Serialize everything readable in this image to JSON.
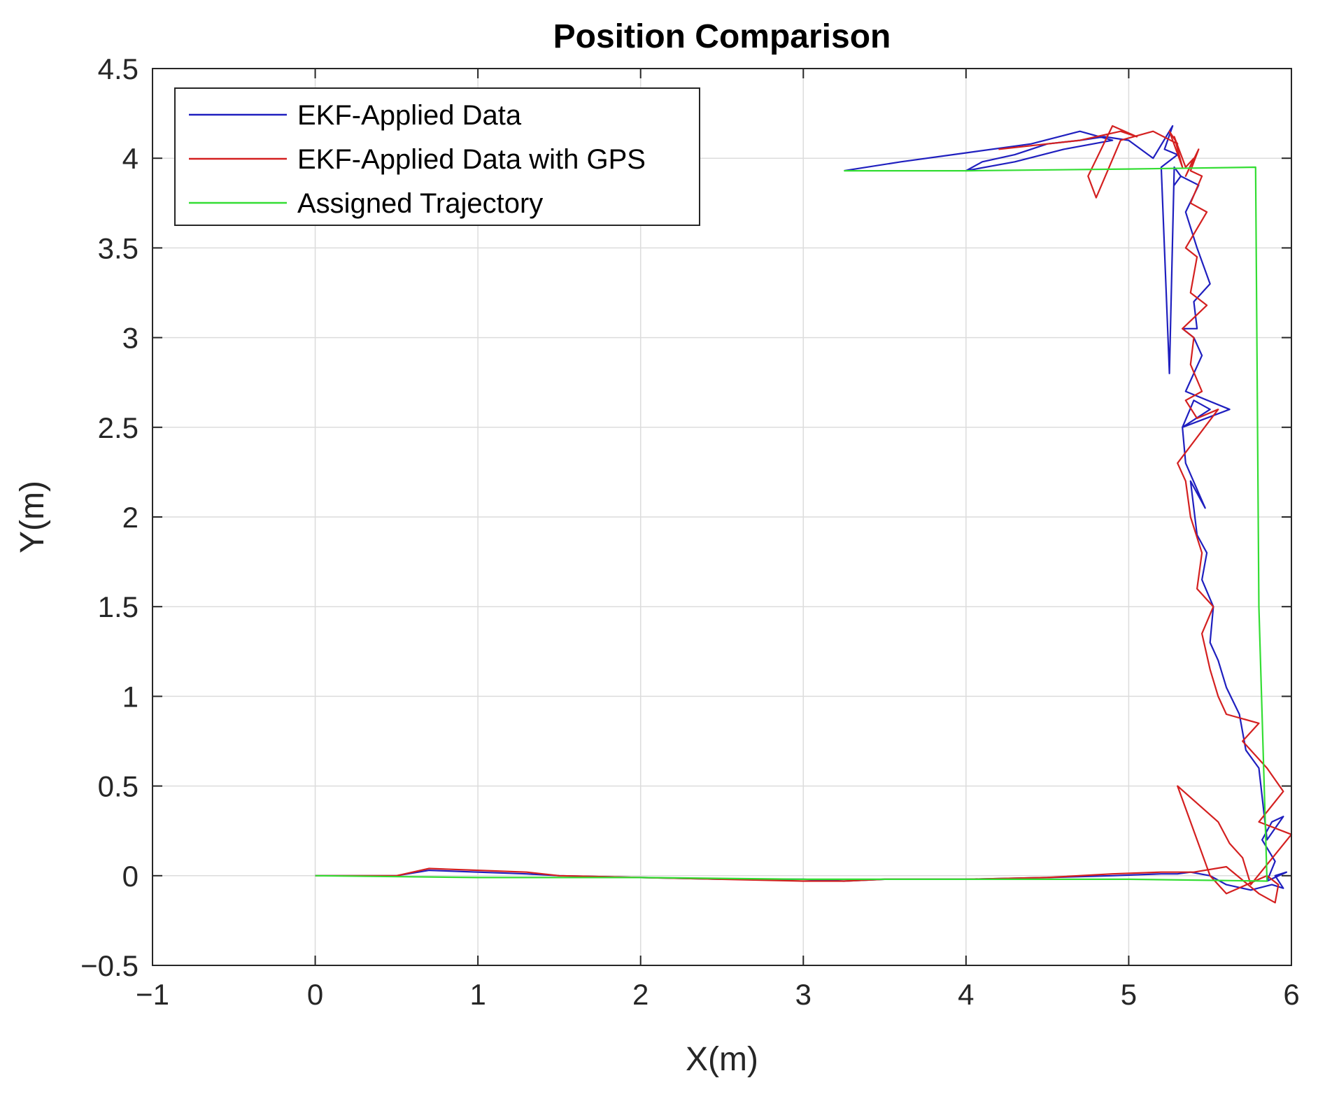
{
  "chart_data": {
    "type": "line",
    "title": "Position Comparison",
    "xlabel": "X(m)",
    "ylabel": "Y(m)",
    "xlim": [
      -1,
      6
    ],
    "ylim": [
      -0.5,
      4.5
    ],
    "xticks": [
      -1,
      0,
      1,
      2,
      3,
      4,
      5,
      6
    ],
    "xtick_labels": [
      "−1",
      "0",
      "1",
      "2",
      "3",
      "4",
      "5",
      "6"
    ],
    "yticks": [
      -0.5,
      0,
      0.5,
      1,
      1.5,
      2,
      2.5,
      3,
      3.5,
      4,
      4.5
    ],
    "ytick_labels": [
      "−0.5",
      "0",
      "0.5",
      "1",
      "1.5",
      "2",
      "2.5",
      "3",
      "3.5",
      "4",
      "4.5"
    ],
    "grid": true,
    "legend_position": "top-left",
    "series": [
      {
        "name": "EKF-Applied Data",
        "color": "#1f1fbf",
        "x": [
          0,
          0.5,
          0.7,
          1.0,
          1.3,
          1.5,
          2.0,
          2.5,
          3.0,
          3.25,
          3.5,
          4.0,
          4.5,
          4.9,
          5.2,
          5.3,
          5.38,
          5.5,
          5.6,
          5.75,
          5.88,
          5.95,
          5.9,
          5.97,
          5.85,
          5.9,
          5.82,
          5.88,
          5.95,
          5.85,
          5.8,
          5.72,
          5.68,
          5.6,
          5.55,
          5.5,
          5.52,
          5.45,
          5.48,
          5.42,
          5.38,
          5.47,
          5.35,
          5.33,
          5.5,
          5.4,
          5.33,
          5.62,
          5.35,
          5.45,
          5.4,
          5.33,
          5.42,
          5.4,
          5.5,
          5.42,
          5.35,
          5.43,
          5.32,
          5.28,
          5.32,
          5.28,
          5.25,
          5.2,
          5.3,
          5.22,
          5.27,
          5.15,
          5.0,
          4.85,
          4.7,
          4.5,
          4.3,
          4.1,
          4.0,
          4.3,
          4.6,
          4.9,
          4.7,
          4.4,
          4.0,
          3.6,
          3.25
        ],
        "y": [
          0,
          0.0,
          0.03,
          0.02,
          0.01,
          0.0,
          -0.01,
          -0.02,
          -0.02,
          -0.03,
          -0.02,
          -0.02,
          -0.01,
          0.0,
          0.01,
          0.01,
          0.02,
          0.0,
          -0.05,
          -0.08,
          -0.05,
          -0.07,
          0.0,
          0.02,
          -0.03,
          0.08,
          0.2,
          0.3,
          0.33,
          0.2,
          0.6,
          0.7,
          0.9,
          1.05,
          1.2,
          1.3,
          1.5,
          1.65,
          1.8,
          1.9,
          2.2,
          2.05,
          2.3,
          2.5,
          2.6,
          2.65,
          2.5,
          2.6,
          2.7,
          2.9,
          3.0,
          3.05,
          3.05,
          3.2,
          3.3,
          3.5,
          3.7,
          3.85,
          3.9,
          3.85,
          3.9,
          3.95,
          2.8,
          3.95,
          4.02,
          4.05,
          4.18,
          4.0,
          4.1,
          4.12,
          4.1,
          4.08,
          4.02,
          3.98,
          3.93,
          3.98,
          4.05,
          4.1,
          4.15,
          4.08,
          4.03,
          3.98,
          3.93
        ]
      },
      {
        "name": "EKF-Applied Data with GPS",
        "color": "#d42020",
        "x": [
          0,
          0.5,
          0.7,
          1.0,
          1.3,
          1.5,
          2.0,
          2.5,
          3.0,
          3.25,
          3.5,
          4.0,
          4.5,
          4.9,
          5.2,
          5.4,
          5.6,
          5.8,
          5.9,
          5.92,
          5.85,
          5.6,
          5.5,
          5.3,
          5.55,
          5.62,
          5.7,
          5.75,
          6.0,
          5.8,
          5.95,
          5.85,
          5.7,
          5.8,
          5.6,
          5.55,
          5.5,
          5.45,
          5.52,
          5.42,
          5.45,
          5.38,
          5.35,
          5.3,
          5.55,
          5.42,
          5.35,
          5.45,
          5.38,
          5.4,
          5.33,
          5.48,
          5.38,
          5.42,
          5.35,
          5.48,
          5.38,
          5.45,
          5.38,
          5.43,
          5.35,
          5.4,
          5.35,
          5.28,
          5.33,
          5.25,
          5.3,
          5.15,
          4.95,
          4.8,
          4.75,
          4.9,
          5.05,
          4.95,
          4.7,
          4.5,
          4.2
        ],
        "y": [
          0,
          0.0,
          0.04,
          0.03,
          0.02,
          0.0,
          -0.01,
          -0.02,
          -0.03,
          -0.03,
          -0.02,
          -0.02,
          -0.01,
          0.01,
          0.02,
          0.02,
          0.05,
          -0.1,
          -0.15,
          -0.05,
          0.0,
          -0.1,
          0.0,
          0.5,
          0.3,
          0.18,
          0.1,
          -0.05,
          0.23,
          0.3,
          0.47,
          0.6,
          0.75,
          0.85,
          0.9,
          1.0,
          1.15,
          1.35,
          1.5,
          1.6,
          1.8,
          2.0,
          2.2,
          2.3,
          2.6,
          2.55,
          2.65,
          2.7,
          2.85,
          3.0,
          3.05,
          3.18,
          3.25,
          3.45,
          3.5,
          3.7,
          3.75,
          3.9,
          3.93,
          4.05,
          3.9,
          4.0,
          3.95,
          4.12,
          3.95,
          4.15,
          4.08,
          4.15,
          4.1,
          3.78,
          3.9,
          4.18,
          4.12,
          4.15,
          4.1,
          4.08,
          4.05
        ]
      },
      {
        "name": "Assigned Trajectory",
        "color": "#33dd33",
        "x": [
          0,
          1,
          2,
          3,
          4,
          5,
          5.85,
          5.8,
          5.78,
          5.0,
          4.0,
          3.25
        ],
        "y": [
          0,
          -0.01,
          -0.01,
          -0.02,
          -0.02,
          -0.02,
          -0.03,
          1.5,
          3.95,
          3.94,
          3.93,
          3.93
        ]
      }
    ]
  }
}
